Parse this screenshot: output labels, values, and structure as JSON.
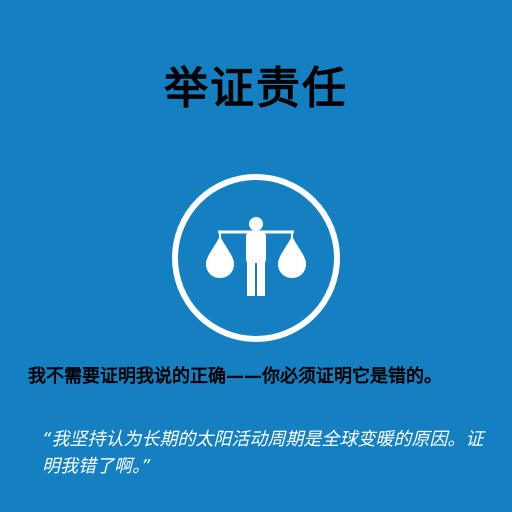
{
  "card": {
    "title": "举证责任",
    "icon": "burden-of-proof-icon",
    "statement": "我不需要证明我说的正确——你必须证明它是错的。",
    "quote": "“我坚持认为长期的太阳活动周期是全球变暖的原因。证明我错了啊。”"
  },
  "colors": {
    "background": "#1480c2",
    "title": "#000000",
    "icon": "#ffffff",
    "quote": "#ffffff"
  }
}
